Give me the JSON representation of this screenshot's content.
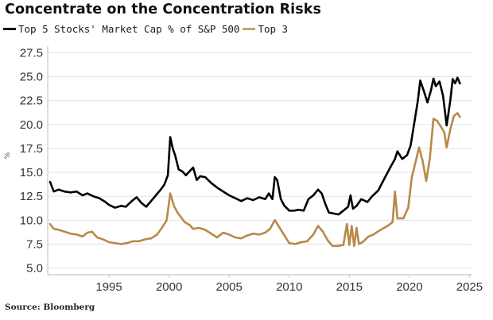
{
  "chart_data": {
    "type": "line",
    "title": "Concentrate on the Concentration Risks",
    "xlabel": "",
    "ylabel": "%",
    "xlim": [
      1989.9,
      2025.5
    ],
    "ylim": [
      4.3,
      28.2
    ],
    "grid": true,
    "legend_placement": "top-left",
    "xticks": [
      1995,
      2000,
      2005,
      2010,
      2015,
      2020,
      2025
    ],
    "xtick_labels": [
      "1995",
      "2000",
      "2005",
      "2010",
      "2015",
      "2020",
      "2025"
    ],
    "yticks": [
      5.0,
      7.5,
      10.0,
      12.5,
      15.0,
      17.5,
      20.0,
      22.5,
      25.0,
      27.5
    ],
    "ytick_labels": [
      "5.0",
      "7.5",
      "10.0",
      "12.5",
      "15.0",
      "17.5",
      "20.0",
      "22.5",
      "25.0",
      "27.5"
    ],
    "series": [
      {
        "name": "Top 5 Stocks' Market Cap % of S&P 500",
        "color": "#000000",
        "x": [
          1990.1,
          1990.4,
          1990.8,
          1991.3,
          1991.8,
          1992.3,
          1992.8,
          1993.2,
          1993.7,
          1994.2,
          1994.7,
          1995.0,
          1995.5,
          1996.0,
          1996.4,
          1996.9,
          1997.3,
          1997.7,
          1998.1,
          1998.5,
          1998.9,
          1999.3,
          1999.6,
          1999.9,
          2000.1,
          2000.3,
          2000.5,
          2000.8,
          2001.1,
          2001.4,
          2001.7,
          2002.0,
          2002.3,
          2002.6,
          2003.0,
          2003.5,
          2004.0,
          2004.5,
          2005.0,
          2005.5,
          2006.0,
          2006.5,
          2007.0,
          2007.5,
          2008.0,
          2008.3,
          2008.6,
          2008.8,
          2009.0,
          2009.3,
          2009.6,
          2010.0,
          2010.4,
          2010.8,
          2011.2,
          2011.6,
          2012.0,
          2012.4,
          2012.7,
          2013.0,
          2013.3,
          2013.7,
          2014.1,
          2014.5,
          2014.9,
          2015.1,
          2015.3,
          2015.6,
          2016.0,
          2016.5,
          2016.9,
          2017.4,
          2017.9,
          2018.4,
          2018.8,
          2019.0,
          2019.4,
          2019.8,
          2020.1,
          2020.4,
          2020.7,
          2020.9,
          2021.2,
          2021.5,
          2021.8,
          2022.0,
          2022.2,
          2022.5,
          2022.8,
          2023.1,
          2023.4,
          2023.6,
          2023.8,
          2024.0,
          2024.2
        ],
        "values": [
          14.0,
          13.0,
          13.2,
          13.0,
          12.9,
          13.0,
          12.6,
          12.8,
          12.5,
          12.3,
          11.9,
          11.6,
          11.3,
          11.5,
          11.4,
          12.0,
          12.4,
          11.8,
          11.4,
          12.0,
          12.6,
          13.2,
          13.7,
          14.7,
          18.7,
          17.5,
          16.8,
          15.3,
          15.1,
          14.7,
          15.1,
          15.5,
          14.2,
          14.6,
          14.5,
          13.9,
          13.4,
          13.0,
          12.6,
          12.3,
          12.0,
          12.3,
          12.1,
          12.4,
          12.2,
          12.8,
          12.2,
          14.5,
          14.2,
          12.2,
          11.5,
          11.0,
          11.0,
          11.1,
          11.0,
          12.2,
          12.6,
          13.2,
          12.8,
          11.7,
          10.8,
          10.7,
          10.6,
          11.0,
          11.4,
          12.6,
          11.2,
          11.5,
          12.2,
          11.9,
          12.5,
          13.1,
          14.3,
          15.5,
          16.4,
          17.2,
          16.4,
          16.8,
          17.8,
          20.1,
          22.5,
          24.6,
          23.5,
          22.3,
          23.6,
          24.8,
          24.0,
          24.5,
          23.0,
          19.9,
          22.5,
          24.75,
          24.3,
          24.9,
          24.3
        ]
      },
      {
        "name": "Top 3",
        "color": "#b8894a",
        "x": [
          1990.1,
          1990.4,
          1990.8,
          1991.3,
          1991.8,
          1992.3,
          1992.8,
          1993.2,
          1993.6,
          1994.0,
          1994.5,
          1995.0,
          1995.5,
          1996.0,
          1996.5,
          1997.0,
          1997.5,
          1998.0,
          1998.5,
          1999.0,
          1999.4,
          1999.8,
          2000.1,
          2000.4,
          2000.7,
          2001.0,
          2001.3,
          2001.7,
          2002.0,
          2002.5,
          2003.0,
          2003.5,
          2004.0,
          2004.5,
          2005.0,
          2005.5,
          2006.0,
          2006.5,
          2007.0,
          2007.5,
          2008.0,
          2008.4,
          2008.8,
          2009.1,
          2009.5,
          2010.0,
          2010.5,
          2011.0,
          2011.5,
          2012.0,
          2012.4,
          2012.8,
          2013.2,
          2013.6,
          2014.0,
          2014.5,
          2014.8,
          2015.0,
          2015.2,
          2015.4,
          2015.6,
          2015.8,
          2016.1,
          2016.6,
          2017.0,
          2017.6,
          2018.2,
          2018.6,
          2018.8,
          2019.0,
          2019.5,
          2019.9,
          2020.2,
          2020.5,
          2020.8,
          2021.1,
          2021.4,
          2021.7,
          2022.0,
          2022.3,
          2022.6,
          2022.9,
          2023.1,
          2023.4,
          2023.7,
          2024.0,
          2024.2
        ],
        "values": [
          9.6,
          9.1,
          9.0,
          8.8,
          8.6,
          8.5,
          8.3,
          8.7,
          8.8,
          8.2,
          8.0,
          7.7,
          7.6,
          7.5,
          7.6,
          7.8,
          7.8,
          8.0,
          8.1,
          8.5,
          9.2,
          10.0,
          12.8,
          11.5,
          10.8,
          10.3,
          9.8,
          9.5,
          9.1,
          9.2,
          9.0,
          8.6,
          8.2,
          8.7,
          8.5,
          8.2,
          8.1,
          8.4,
          8.6,
          8.5,
          8.7,
          9.1,
          10.0,
          9.4,
          8.6,
          7.6,
          7.5,
          7.7,
          7.8,
          8.5,
          9.4,
          8.8,
          7.9,
          7.3,
          7.3,
          7.4,
          9.6,
          7.4,
          9.4,
          7.3,
          9.2,
          7.5,
          7.7,
          8.3,
          8.5,
          9.0,
          9.4,
          9.8,
          13.0,
          10.2,
          10.2,
          11.3,
          14.5,
          16.0,
          17.6,
          16.2,
          14.1,
          16.5,
          20.6,
          20.4,
          19.8,
          19.2,
          17.6,
          19.5,
          20.9,
          21.2,
          20.8
        ]
      }
    ],
    "annotations": []
  },
  "header": {
    "title": "Concentrate on the Concentration Risks",
    "legend": [
      {
        "label": "Top 5 Stocks' Market Cap % of S&P 500",
        "color": "#000000"
      },
      {
        "label": "Top 3",
        "color": "#c9a06a"
      }
    ]
  },
  "footer": {
    "source": "Source: Bloomberg"
  }
}
